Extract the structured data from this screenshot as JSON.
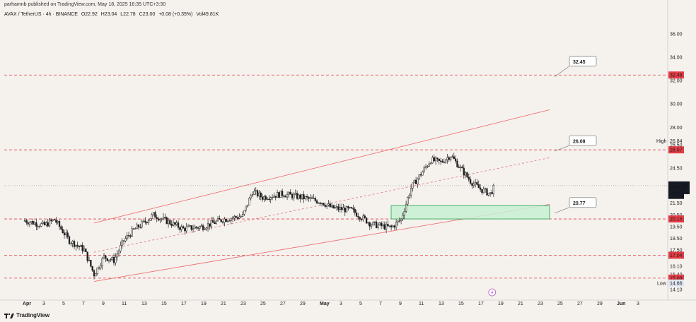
{
  "header": {
    "published": "parhamnb published on TradingView.com, May 18, 2025 16:35 UTC+3:30"
  },
  "symbol": {
    "name": "AVAX / TetherUS · 4h · BINANCE",
    "open": "O22.92",
    "high": "H23.04",
    "low": "L22.78",
    "close": "C23.00",
    "change": "+0.08 (+0.35%)",
    "volume": "Vol49.81K"
  },
  "footer": {
    "brand": "TradingView"
  },
  "colors": {
    "background": "#f5f2ee",
    "channel": "#f07070",
    "level_line": "#e33c45",
    "bull": "#1f1f1f",
    "bear": "#1f1f1f",
    "zone_fill": "#c7f0d2",
    "zone_border": "#20a24a"
  },
  "chart_data": {
    "type": "candlestick",
    "ylim": [
      13.5,
      38.3
    ],
    "y_ticks": [
      "36.00",
      "34.00",
      "32.00",
      "30.00",
      "28.00",
      "26.50",
      "24.50",
      "23.00",
      "21.50",
      "20.50",
      "19.50",
      "18.50",
      "17.50",
      "16.10",
      "15.40",
      "14.10"
    ],
    "x_ticks": [
      "Apr",
      "3",
      "5",
      "7",
      "9",
      "11",
      "13",
      "15",
      "17",
      "19",
      "21",
      "23",
      "25",
      "27",
      "29",
      "May",
      "3",
      "5",
      "7",
      "9",
      "11",
      "13",
      "15",
      "17",
      "19",
      "21",
      "23",
      "25",
      "27",
      "29",
      "Jun",
      "3"
    ],
    "price_points": [
      {
        "d": 0,
        "p": 20.0
      },
      {
        "d": 2,
        "p": 19.6
      },
      {
        "d": 3,
        "p": 20.1
      },
      {
        "d": 4.5,
        "p": 18.3
      },
      {
        "d": 6,
        "p": 17.5
      },
      {
        "d": 7,
        "p": 15.4
      },
      {
        "d": 8,
        "p": 16.9
      },
      {
        "d": 9,
        "p": 16.6
      },
      {
        "d": 10,
        "p": 18.3
      },
      {
        "d": 11,
        "p": 19.2
      },
      {
        "d": 12,
        "p": 19.8
      },
      {
        "d": 13,
        "p": 20.5
      },
      {
        "d": 14,
        "p": 20.1
      },
      {
        "d": 16,
        "p": 19.3
      },
      {
        "d": 18,
        "p": 19.5
      },
      {
        "d": 20,
        "p": 20.1
      },
      {
        "d": 22,
        "p": 20.4
      },
      {
        "d": 23,
        "p": 22.5
      },
      {
        "d": 24,
        "p": 22.0
      },
      {
        "d": 26,
        "p": 22.3
      },
      {
        "d": 28,
        "p": 22.0
      },
      {
        "d": 30,
        "p": 21.6
      },
      {
        "d": 31,
        "p": 21.1
      },
      {
        "d": 33,
        "p": 20.9
      },
      {
        "d": 35,
        "p": 19.7
      },
      {
        "d": 37,
        "p": 19.4
      },
      {
        "d": 38,
        "p": 20.1
      },
      {
        "d": 39,
        "p": 22.8
      },
      {
        "d": 40,
        "p": 24.0
      },
      {
        "d": 41,
        "p": 25.2
      },
      {
        "d": 42,
        "p": 25.0
      },
      {
        "d": 43,
        "p": 25.6
      },
      {
        "d": 44,
        "p": 24.5
      },
      {
        "d": 45,
        "p": 23.4
      },
      {
        "d": 46,
        "p": 22.7
      },
      {
        "d": 47,
        "p": 22.3
      },
      {
        "d": 47.5,
        "p": 23.0
      }
    ],
    "levels": [
      {
        "price": 32.48,
        "label": "32.48"
      },
      {
        "price": 26.07,
        "label": "26.07"
      },
      {
        "price": 20.15,
        "label": "20.15"
      },
      {
        "price": 17.04,
        "label": "17.04"
      },
      {
        "price": 15.08,
        "label": "15.08"
      }
    ],
    "current_price": {
      "price": 23.0,
      "label": "23.00",
      "countdown": "02:54:35"
    },
    "extra_price_label": {
      "price": 22.17,
      "label": "22.17"
    },
    "high_marker": {
      "price": 26.84,
      "label": "26.84",
      "tag": "High"
    },
    "low_marker": {
      "price": 14.66,
      "label": "14.66",
      "tag": "Low"
    },
    "targets": [
      {
        "price": 32.45,
        "label": "32.45"
      },
      {
        "price": 26.08,
        "label": "26.08"
      },
      {
        "price": 20.77,
        "label": "20.77"
      }
    ],
    "channel": {
      "upper": [
        {
          "d": 7,
          "p": 19.8
        },
        {
          "d": 53,
          "p": 29.5
        }
      ],
      "lower": [
        {
          "d": 7,
          "p": 14.8
        },
        {
          "d": 53,
          "p": 21.4
        }
      ],
      "middle": [
        {
          "d": 7,
          "p": 17.3
        },
        {
          "d": 53,
          "p": 25.4
        }
      ]
    },
    "zone": {
      "d0": 37,
      "d1": 53,
      "p0": 20.15,
      "p1": 21.3
    }
  }
}
